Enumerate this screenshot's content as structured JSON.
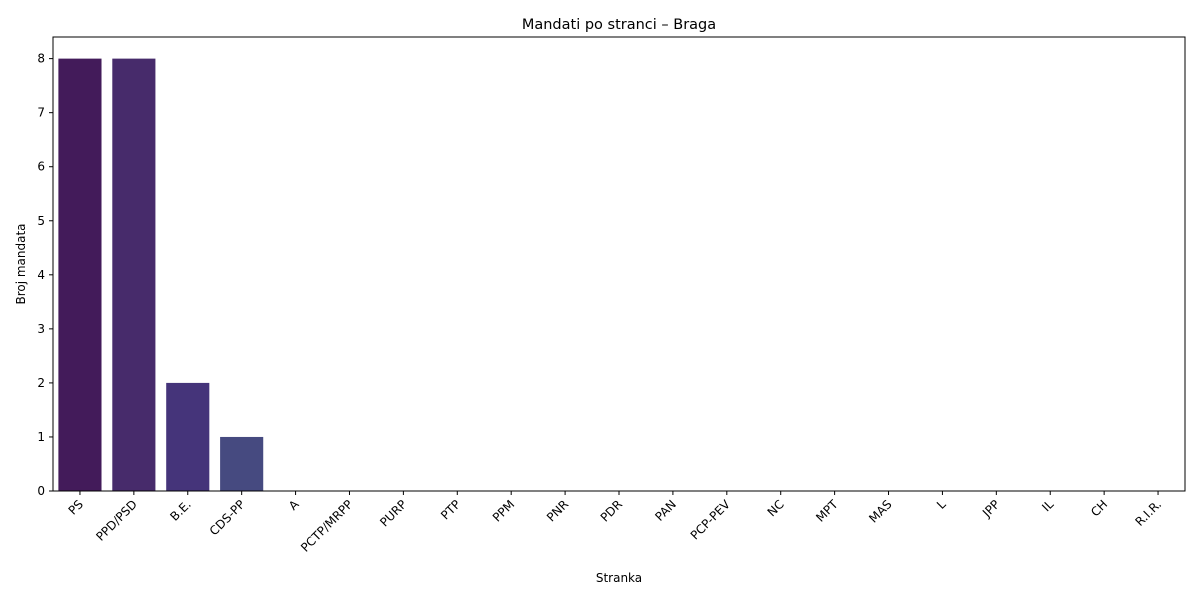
{
  "chart_data": {
    "type": "bar",
    "title": "Mandati po stranci – Braga",
    "xlabel": "Stranka",
    "ylabel": "Broj mandata",
    "categories": [
      "PS",
      "PPD/PSD",
      "B.E.",
      "CDS-PP",
      "A",
      "PCTP/MRPP",
      "PURP",
      "PTP",
      "PPM",
      "PNR",
      "PDR",
      "PAN",
      "PCP-PEV",
      "NC",
      "MPT",
      "MAS",
      "L",
      "JPP",
      "IL",
      "CH",
      "R.I.R."
    ],
    "values": [
      8,
      8,
      2,
      1,
      0,
      0,
      0,
      0,
      0,
      0,
      0,
      0,
      0,
      0,
      0,
      0,
      0,
      0,
      0,
      0,
      0
    ],
    "colors": [
      "#431b5a",
      "#472b6b",
      "#45347a",
      "#464a80"
    ],
    "ylim": [
      0,
      8.4
    ],
    "yticks": [
      0,
      1,
      2,
      3,
      4,
      5,
      6,
      7,
      8
    ],
    "grid": false,
    "legend": false
  }
}
